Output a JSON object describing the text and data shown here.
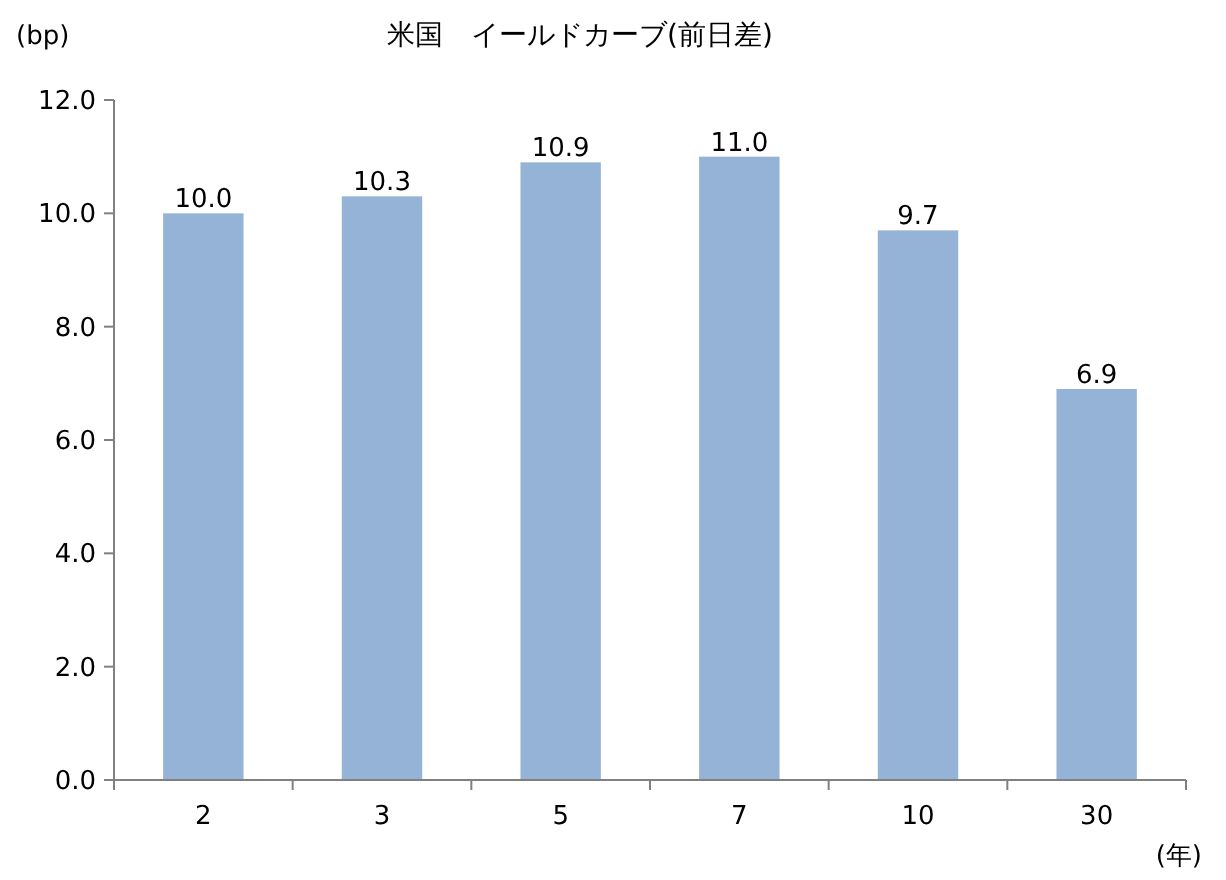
{
  "chart_data": {
    "type": "bar",
    "title": "米国　イールドカーブ(前日差)",
    "ylabel": "(bp)",
    "xlabel": "(年)",
    "categories": [
      "2",
      "3",
      "5",
      "7",
      "10",
      "30"
    ],
    "values": [
      10.0,
      10.3,
      10.9,
      11.0,
      9.7,
      6.9
    ],
    "value_labels": [
      "10.0",
      "10.3",
      "10.9",
      "11.0",
      "9.7",
      "6.9"
    ],
    "color": "#95b3d7",
    "ylim": [
      0,
      12
    ],
    "yticks": [
      {
        "value": 0,
        "label": "0.0"
      },
      {
        "value": 2,
        "label": "2.0"
      },
      {
        "value": 4,
        "label": "4.0"
      },
      {
        "value": 6,
        "label": "6.0"
      },
      {
        "value": 8,
        "label": "8.0"
      },
      {
        "value": 10,
        "label": "10.0"
      },
      {
        "value": 12,
        "label": "12.0"
      }
    ],
    "grid": false
  }
}
